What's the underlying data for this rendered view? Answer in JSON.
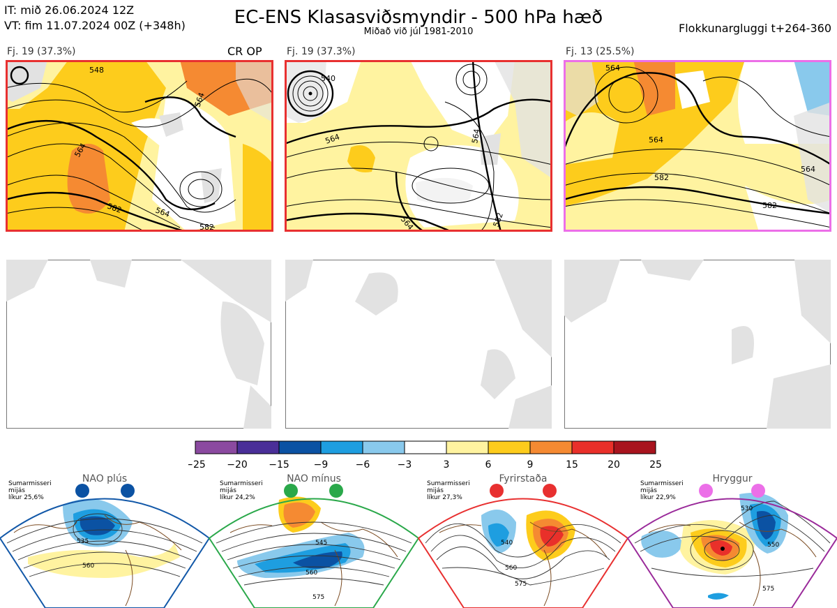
{
  "header": {
    "it_line": "IT: mið 26.06.2024 12Z",
    "vt_line": "VT: fim 11.07.2024 00Z  (+348h)",
    "title": "EC-ENS Klasasviðsmyndir - 500 hPa hæð",
    "subtitle": "Miðað við júl 1981-2010",
    "window": "Flokkunargluggi t+264-360"
  },
  "colors": {
    "neg25": "#8b4aa0",
    "neg20": "#4a2f98",
    "neg15": "#0b52a3",
    "neg9": "#1e9ee0",
    "neg6": "#89c9ec",
    "zero": "#ffffff",
    "pos3": "#fff3a0",
    "pos6": "#fdcc1c",
    "pos9": "#f58a32",
    "pos15": "#e9302a",
    "pos20": "#a8141e",
    "land": "#e2e2e2",
    "coast": "#8a5a3c",
    "frame_nao_plus": "#1258a8",
    "frame_nao_minus": "#2aa84a",
    "frame_block": "#e83030",
    "frame_ridge": "#9a2a9a",
    "frame_cluster_red": "#e83030",
    "frame_cluster_pink": "#ec6fe8"
  },
  "top_panels": [
    {
      "label": "Fj. 19 (37.3%)",
      "badge": "CR OP",
      "contours": [
        "548",
        "564",
        "564",
        "582",
        "564",
        "582"
      ]
    },
    {
      "label": "Fj. 19 (37.3%)",
      "badge": "",
      "contours": [
        "540",
        "564",
        "564",
        "564",
        "582"
      ]
    },
    {
      "label": "Fj. 13 (25.5%)",
      "badge": "",
      "contours": [
        "564",
        "564",
        "582",
        "564",
        "582"
      ]
    }
  ],
  "chart_data": {
    "type": "heatmap",
    "title": "EC-ENS Klasasviðsmyndir - 500 hPa hæð",
    "colorbar": {
      "ticks": [
        "−25",
        "−20",
        "−15",
        "−9",
        "−6",
        "−3",
        "3",
        "6",
        "9",
        "15",
        "20",
        "25"
      ],
      "bins": [
        {
          "from": -25,
          "to": -20,
          "color": "#8b4aa0"
        },
        {
          "from": -20,
          "to": -15,
          "color": "#4a2f98"
        },
        {
          "from": -15,
          "to": -9,
          "color": "#0b52a3"
        },
        {
          "from": -9,
          "to": -6,
          "color": "#1e9ee0"
        },
        {
          "from": -6,
          "to": -3,
          "color": "#89c9ec"
        },
        {
          "from": -3,
          "to": 3,
          "color": "#ffffff"
        },
        {
          "from": 3,
          "to": 6,
          "color": "#fff3a0"
        },
        {
          "from": 6,
          "to": 9,
          "color": "#fdcc1c"
        },
        {
          "from": 9,
          "to": 15,
          "color": "#f58a32"
        },
        {
          "from": 15,
          "to": 20,
          "color": "#e9302a"
        },
        {
          "from": 20,
          "to": 25,
          "color": "#a8141e"
        }
      ]
    },
    "regimes": [
      {
        "name": "NAO plús",
        "season_lines": [
          "Sumarmisseri",
          "mijás",
          "líkur 25,6%"
        ],
        "likelihood_pct": 25.6,
        "dot_color": "#0b52a3",
        "contour_labels": [
          "535",
          "560"
        ]
      },
      {
        "name": "NAO mínus",
        "season_lines": [
          "Sumarmisseri",
          "mijás",
          "líkur 24,2%"
        ],
        "likelihood_pct": 24.2,
        "dot_color": "#2aa84a",
        "contour_labels": [
          "545",
          "560",
          "575"
        ]
      },
      {
        "name": "Fyrirstaða",
        "season_lines": [
          "Sumarmisseri",
          "mijás",
          "líkur 27,3%"
        ],
        "likelihood_pct": 27.3,
        "dot_color": "#e83030",
        "contour_labels": [
          "540",
          "560",
          "575"
        ]
      },
      {
        "name": "Hryggur",
        "season_lines": [
          "Sumarmisseri",
          "mijás",
          "líkur 22,9%"
        ],
        "likelihood_pct": 22.9,
        "dot_color": "#ec6fe8",
        "contour_labels": [
          "530",
          "550",
          "575"
        ]
      }
    ]
  }
}
